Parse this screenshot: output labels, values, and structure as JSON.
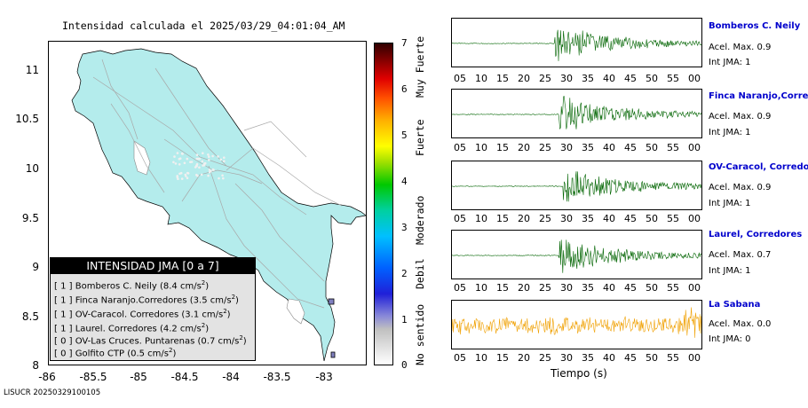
{
  "map": {
    "title": "Intensidad calculada el 2025/03/29_04:01:04_AM",
    "y_ticks": [
      "11",
      "10.5",
      "10",
      "9.5",
      "9",
      "8.5",
      "8"
    ],
    "x_ticks": [
      "-86",
      "-85.5",
      "-85",
      "-84.5",
      "-84",
      "-83.5",
      "-83"
    ],
    "land_color": "#b4ecec",
    "roads_color": "#a8a8a8"
  },
  "legend": {
    "header": "INTENSIDAD JMA [0 a 7]",
    "rows": [
      {
        "int": "[ 1 ]",
        "name": "Bomberos C. Neily",
        "accel": "(8.4 cm/s",
        "sup": "2",
        "close": ")"
      },
      {
        "int": "[ 1 ]",
        "name": "Finca Naranjo.Corredores",
        "accel": "(3.5 cm/s",
        "sup": "2",
        "close": ")"
      },
      {
        "int": "[ 1 ]",
        "name": "OV-Caracol. Corredores",
        "accel": "(3.1 cm/s",
        "sup": "2",
        "close": ")"
      },
      {
        "int": "[ 1 ]",
        "name": "Laurel. Corredores",
        "accel": "(4.2 cm/s",
        "sup": "2",
        "close": ")"
      },
      {
        "int": "[ 0 ]",
        "name": "OV-Las Cruces. Puntarenas",
        "accel": "(0.7 cm/s",
        "sup": "2",
        "close": ")"
      },
      {
        "int": "[ 0 ]",
        "name": "Golfito CTP",
        "accel": "(0.5 cm/s",
        "sup": "2",
        "close": ")"
      }
    ]
  },
  "colorbar": {
    "ticks": [
      "7",
      "6",
      "5",
      "4",
      "3",
      "2",
      "1",
      "0"
    ],
    "labels": [
      "Muy Fuerte",
      "Fuerte",
      "Moderado",
      "Debil",
      "No sentido"
    ]
  },
  "traces": {
    "time_ticks": [
      "05",
      "10",
      "15",
      "20",
      "25",
      "30",
      "35",
      "40",
      "45",
      "50",
      "55",
      "00"
    ],
    "xlabel": "Tiempo (s)",
    "stations": [
      {
        "name": "Bomberos C. Neily",
        "acel": "Acel. Max. 0.9",
        "int": "Int JMA: 1",
        "color": "#006400",
        "onset": 27.5
      },
      {
        "name": "Finca Naranjo,Corredores",
        "acel": "Acel. Max. 0.9",
        "int": "Int JMA: 1",
        "color": "#006400",
        "onset": 28.5
      },
      {
        "name": "OV-Caracol, Corredores",
        "acel": "Acel. Max. 0.9",
        "int": "Int JMA: 1",
        "color": "#006400",
        "onset": 29.5
      },
      {
        "name": "Laurel, Corredores",
        "acel": "Acel. Max. 0.7",
        "int": "Int JMA: 1",
        "color": "#006400",
        "onset": 28.5
      },
      {
        "name": "La Sabana",
        "acel": "Acel. Max. 0.0",
        "int": "Int JMA: 0",
        "color": "#f0a000",
        "onset": 0
      }
    ]
  },
  "footer": "LISUCR 20250329100105"
}
